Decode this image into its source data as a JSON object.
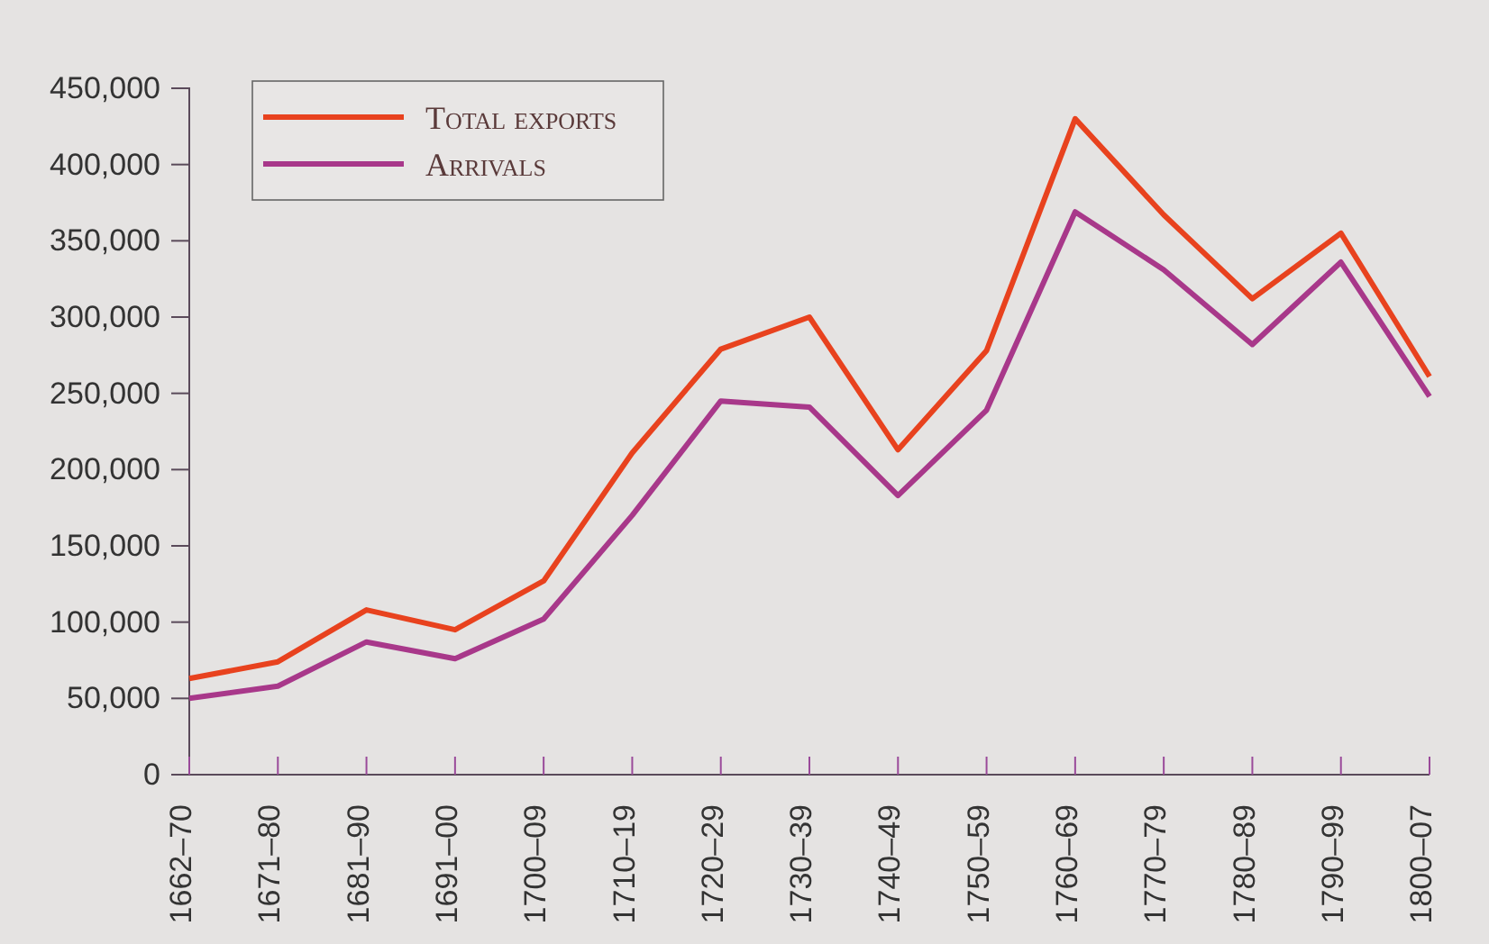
{
  "chart_data": {
    "type": "line",
    "categories": [
      "1662–70",
      "1671–80",
      "1681–90",
      "1691–00",
      "1700–09",
      "1710–19",
      "1720–29",
      "1730–39",
      "1740–49",
      "1750–59",
      "1760–69",
      "1770–79",
      "1780–89",
      "1790–99",
      "1800–07"
    ],
    "series": [
      {
        "name": "Total exports",
        "color": "#e8421e",
        "values": [
          63000,
          74000,
          108000,
          95000,
          127000,
          211000,
          279000,
          300000,
          213000,
          278000,
          430000,
          367000,
          312000,
          355000,
          261000
        ]
      },
      {
        "name": "Arrivals",
        "color": "#a8388a",
        "values": [
          50000,
          58000,
          87000,
          76000,
          102000,
          170000,
          245000,
          241000,
          183000,
          239000,
          369000,
          331000,
          282000,
          336000,
          248000
        ]
      }
    ],
    "ylim": [
      0,
      450000
    ],
    "yticks": [
      {
        "value": 0,
        "label": "0"
      },
      {
        "value": 50000,
        "label": "50,000"
      },
      {
        "value": 100000,
        "label": "100,000"
      },
      {
        "value": 150000,
        "label": "150,000"
      },
      {
        "value": 200000,
        "label": "200,000"
      },
      {
        "value": 250000,
        "label": "250,000"
      },
      {
        "value": 300000,
        "label": "300,000"
      },
      {
        "value": 350000,
        "label": "350,000"
      },
      {
        "value": 400000,
        "label": "400,000"
      },
      {
        "value": 450000,
        "label": "450,000"
      }
    ],
    "legend": "top left",
    "marker": "none",
    "line_style": "solid",
    "grid": false
  }
}
